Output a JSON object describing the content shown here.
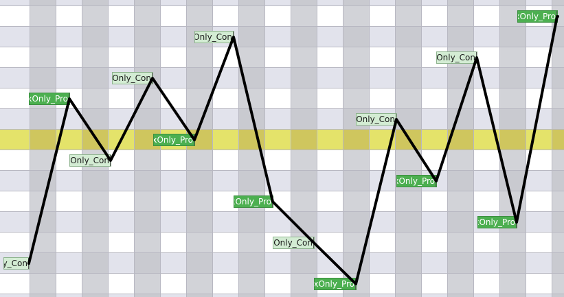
{
  "colors": {
    "row_shade": "#e2e3ec",
    "col_shade": "#d2d3d8",
    "col_shade_on_row": "#c9cad0",
    "grid_line": "#b8b8c2",
    "highlight_row": "#e4e36a",
    "highlight_col": "#cfc65e",
    "path": "#000000"
  },
  "nodes": [
    {
      "id": "n0",
      "label": "Only_Con",
      "style": "light"
    },
    {
      "id": "n1",
      "label": "xOnly_Pro",
      "style": "dark"
    },
    {
      "id": "n2",
      "label": "Only_Con",
      "style": "light"
    },
    {
      "id": "n3",
      "label": "Only_Con",
      "style": "light"
    },
    {
      "id": "n4",
      "label": "xOnly_Pro",
      "style": "dark"
    },
    {
      "id": "n5",
      "label": "Only_Con",
      "style": "light"
    },
    {
      "id": "n6",
      "label": "xOnly_Pro",
      "style": "dark"
    },
    {
      "id": "n7",
      "label": "Only_Con",
      "style": "light"
    },
    {
      "id": "n8",
      "label": "xOnly_Pro",
      "style": "dark"
    },
    {
      "id": "n9",
      "label": "Only_Con",
      "style": "light"
    },
    {
      "id": "n10",
      "label": "xOnly_Pro",
      "style": "dark"
    },
    {
      "id": "n11",
      "label": "Only_Con",
      "style": "light"
    },
    {
      "id": "n12",
      "label": "xOnly_Pro",
      "style": "dark"
    },
    {
      "id": "n13",
      "label": "xOnly_Pro",
      "style": "dark"
    }
  ]
}
